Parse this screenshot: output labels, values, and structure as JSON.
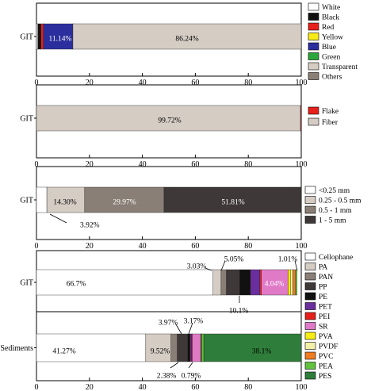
{
  "chart_data": [
    {
      "type": "bar",
      "orientation": "horizontal",
      "stacked": true,
      "categories": [
        "GIT"
      ],
      "xlim": [
        0,
        100
      ],
      "xticks": [
        0,
        20,
        40,
        60,
        80,
        100
      ],
      "legend_position": "right",
      "series": [
        {
          "name": "White",
          "color": "#ffffff",
          "values": [
            0.5
          ]
        },
        {
          "name": "Black",
          "color": "#111111",
          "values": [
            1.2
          ]
        },
        {
          "name": "Red",
          "color": "#e8201c",
          "values": [
            0.9
          ]
        },
        {
          "name": "Yellow",
          "color": "#f7ec13",
          "values": [
            0.01
          ]
        },
        {
          "name": "Blue",
          "color": "#2b2f9e",
          "values": [
            11.14
          ]
        },
        {
          "name": "Green",
          "color": "#2aa63a",
          "values": [
            0.01
          ]
        },
        {
          "name": "Transparent",
          "color": "#d5ccc4",
          "values": [
            86.24
          ]
        },
        {
          "name": "Others",
          "color": "#8a7f76",
          "values": [
            0.0
          ]
        }
      ],
      "data_labels": [
        "11.14%",
        "86.24%"
      ]
    },
    {
      "type": "bar",
      "orientation": "horizontal",
      "stacked": true,
      "categories": [
        "GIT"
      ],
      "xlim": [
        0,
        100
      ],
      "xticks": [
        0,
        20,
        40,
        60,
        80,
        100
      ],
      "legend_position": "right",
      "series": [
        {
          "name": "Fiber",
          "color": "#d5ccc4",
          "values": [
            99.72
          ]
        },
        {
          "name": "Flake",
          "color": "#e8201c",
          "values": [
            0.28
          ]
        }
      ],
      "data_labels": [
        "99.72%"
      ]
    },
    {
      "type": "bar",
      "orientation": "horizontal",
      "stacked": true,
      "categories": [
        "GIT"
      ],
      "xlim": [
        0,
        100
      ],
      "xticks": [
        0,
        20,
        40,
        60,
        80,
        100
      ],
      "legend_position": "right",
      "series": [
        {
          "name": "<0.25 mm",
          "color": "#ffffff",
          "values": [
            3.92
          ]
        },
        {
          "name": "0.25 - 0.5 mm",
          "color": "#d5ccc4",
          "values": [
            14.3
          ]
        },
        {
          "name": "0.5 - 1 mm",
          "color": "#8a7f76",
          "values": [
            29.97
          ]
        },
        {
          "name": "1 - 5 mm",
          "color": "#3e3838",
          "values": [
            51.81
          ]
        }
      ],
      "data_labels": [
        "3.92%",
        "14.30%",
        "29.97%",
        "51.81%"
      ]
    },
    {
      "type": "bar",
      "orientation": "horizontal",
      "stacked": true,
      "categories": [
        "GIT",
        "Sediments"
      ],
      "xlim": [
        0,
        100
      ],
      "xticks": [
        0,
        20,
        40,
        60,
        80,
        100
      ],
      "legend_position": "right",
      "series": [
        {
          "name": "Cellophane",
          "color": "#ffffff",
          "values": [
            66.7,
            41.27
          ]
        },
        {
          "name": "PA",
          "color": "#d5ccc4",
          "values": [
            3.03,
            9.52
          ]
        },
        {
          "name": "PAN",
          "color": "#8a7f76",
          "values": [
            2.0,
            2.38
          ]
        },
        {
          "name": "PP",
          "color": "#3e3838",
          "values": [
            5.05,
            3.97
          ]
        },
        {
          "name": "PE",
          "color": "#111111",
          "values": [
            4.04,
            0.9
          ]
        },
        {
          "name": "PET",
          "color": "#6a2e9e",
          "values": [
            3.5,
            0.5
          ]
        },
        {
          "name": "PEI",
          "color": "#e8201c",
          "values": [
            0.6,
            0.3
          ]
        },
        {
          "name": "SR",
          "color": "#e07ac7",
          "values": [
            10.1,
            3.17
          ]
        },
        {
          "name": "PVA",
          "color": "#f7ec13",
          "values": [
            1.01,
            0.2
          ]
        },
        {
          "name": "PVDF",
          "color": "#f3f0a8",
          "values": [
            0.8,
            0.1
          ]
        },
        {
          "name": "PVC",
          "color": "#ef7d22",
          "values": [
            1.0,
            0.1
          ]
        },
        {
          "name": "PEA",
          "color": "#62c13f",
          "values": [
            0.6,
            0.79
          ]
        },
        {
          "name": "PES",
          "color": "#2f7d3a",
          "values": [
            0.0,
            38.1
          ]
        }
      ],
      "data_labels": [
        "66.7%",
        "3.03%",
        "5.05%",
        "1.01%",
        "10.1%",
        "4.04%",
        "41.27%",
        "9.52%",
        "3.97%",
        "3.17%",
        "38.1%",
        "2.38%",
        "0.79%"
      ]
    }
  ]
}
